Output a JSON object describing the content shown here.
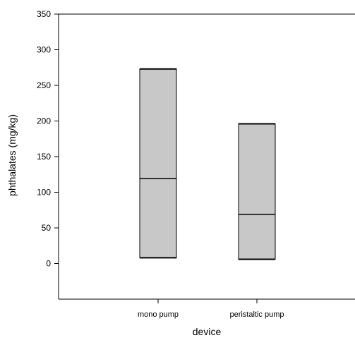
{
  "chart_data": {
    "type": "box",
    "title": "",
    "xlabel": "device",
    "ylabel": "phthalates (mg/kg)",
    "ylim": [
      -50,
      350
    ],
    "yticks": [
      0,
      50,
      100,
      150,
      200,
      250,
      300,
      350
    ],
    "categories": [
      "mono pump",
      "peristaltic pump"
    ],
    "boxes": [
      {
        "category": "mono pump",
        "lower": 8,
        "median": 119,
        "upper": 273
      },
      {
        "category": "peristaltic pump",
        "lower": 6,
        "median": 69,
        "upper": 196
      }
    ],
    "grid": false,
    "legend": "none",
    "colors": {
      "box_fill": "#c8c8c8",
      "box_stroke": "#000000",
      "axis": "#000000"
    }
  }
}
